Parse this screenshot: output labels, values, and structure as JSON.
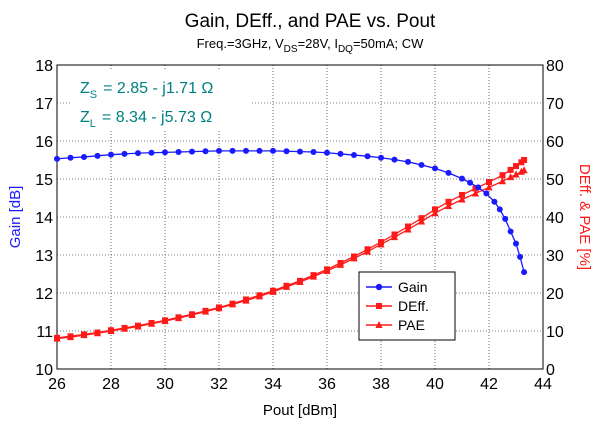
{
  "chart_data": {
    "type": "line",
    "title": "Gain, DEff., and PAE vs. Pout",
    "subtitle": {
      "freq": "Freq.=3GHz, V",
      "vds_sub": "DS",
      "vds_val": "=28V, I",
      "idq_sub": "DQ",
      "idq_val": "=50mA; CW"
    },
    "xlabel": "Pout [dBm]",
    "ylabel_left": "Gain [dB]",
    "ylabel_right": "DEff. & PAE [%]",
    "xlim": [
      26,
      44
    ],
    "ylim_left": [
      10,
      18
    ],
    "ylim_right": [
      0,
      80
    ],
    "xticks": [
      "26",
      "28",
      "30",
      "32",
      "34",
      "36",
      "38",
      "40",
      "42",
      "44"
    ],
    "yticks_left": [
      "10",
      "11",
      "12",
      "13",
      "14",
      "15",
      "16",
      "17",
      "18"
    ],
    "yticks_right": [
      "0",
      "10",
      "20",
      "30",
      "40",
      "50",
      "60",
      "70",
      "80"
    ],
    "grid": true,
    "legend_position": "lower-right",
    "colors": {
      "gain": "#1a1aff",
      "deff": "#ff1a1a",
      "pae": "#ff1a1a",
      "annotation": "#008080"
    },
    "annotation": {
      "zs_label": "Z",
      "zs_sub": "S",
      "zs_value": "=  2.85 - j1.71  Ω",
      "zl_label": "Z",
      "zl_sub": "L",
      "zl_value": "=  8.34 - j5.73  Ω"
    },
    "series": [
      {
        "name": "Gain",
        "axis": "left",
        "marker": "circle",
        "x": [
          26.0,
          26.5,
          27.0,
          27.5,
          28.0,
          28.5,
          29.0,
          29.5,
          30.0,
          30.5,
          31.0,
          31.5,
          32.0,
          32.5,
          33.0,
          33.5,
          34.0,
          34.5,
          35.0,
          35.5,
          36.0,
          36.5,
          37.0,
          37.5,
          38.0,
          38.5,
          39.0,
          39.5,
          40.0,
          40.5,
          41.0,
          41.3,
          41.6,
          41.9,
          42.2,
          42.4,
          42.6,
          42.8,
          43.0,
          43.15,
          43.3
        ],
        "y": [
          15.53,
          15.56,
          15.58,
          15.61,
          15.64,
          15.66,
          15.68,
          15.69,
          15.7,
          15.71,
          15.72,
          15.73,
          15.74,
          15.74,
          15.74,
          15.74,
          15.74,
          15.73,
          15.72,
          15.71,
          15.69,
          15.66,
          15.63,
          15.6,
          15.56,
          15.51,
          15.45,
          15.37,
          15.28,
          15.16,
          15.01,
          14.9,
          14.78,
          14.62,
          14.4,
          14.2,
          13.95,
          13.62,
          13.3,
          12.95,
          12.55
        ]
      },
      {
        "name": "DEff.",
        "axis": "right",
        "marker": "square",
        "x": [
          26.0,
          26.5,
          27.0,
          27.5,
          28.0,
          28.5,
          29.0,
          29.5,
          30.0,
          30.5,
          31.0,
          31.5,
          32.0,
          32.5,
          33.0,
          33.5,
          34.0,
          34.5,
          35.0,
          35.5,
          36.0,
          36.5,
          37.0,
          37.5,
          38.0,
          38.5,
          39.0,
          39.5,
          40.0,
          40.5,
          41.0,
          41.5,
          42.0,
          42.5,
          42.8,
          43.0,
          43.2,
          43.3
        ],
        "y": [
          8.2,
          8.6,
          9.1,
          9.6,
          10.2,
          10.8,
          11.4,
          12.1,
          12.8,
          13.6,
          14.4,
          15.3,
          16.2,
          17.2,
          18.3,
          19.4,
          20.6,
          21.9,
          23.2,
          24.7,
          26.2,
          27.9,
          29.6,
          31.5,
          33.4,
          35.4,
          37.5,
          39.7,
          42.0,
          44.0,
          45.8,
          47.5,
          49.2,
          51.0,
          52.4,
          53.4,
          54.4,
          55.0
        ]
      },
      {
        "name": "PAE",
        "axis": "right",
        "marker": "triangle",
        "x": [
          26.0,
          26.5,
          27.0,
          27.5,
          28.0,
          28.5,
          29.0,
          29.5,
          30.0,
          30.5,
          31.0,
          31.5,
          32.0,
          32.5,
          33.0,
          33.5,
          34.0,
          34.5,
          35.0,
          35.5,
          36.0,
          36.5,
          37.0,
          37.5,
          38.0,
          38.5,
          39.0,
          39.5,
          40.0,
          40.5,
          41.0,
          41.5,
          42.0,
          42.5,
          42.8,
          43.0,
          43.2,
          43.3
        ],
        "y": [
          8.0,
          8.4,
          8.9,
          9.4,
          10.0,
          10.6,
          11.2,
          11.9,
          12.6,
          13.4,
          14.2,
          15.1,
          16.0,
          17.0,
          18.0,
          19.1,
          20.3,
          21.6,
          22.9,
          24.3,
          25.8,
          27.4,
          29.1,
          30.9,
          32.8,
          34.7,
          36.7,
          38.8,
          41.0,
          42.9,
          44.6,
          46.2,
          47.8,
          49.4,
          50.5,
          51.2,
          51.9,
          52.3
        ]
      }
    ]
  }
}
